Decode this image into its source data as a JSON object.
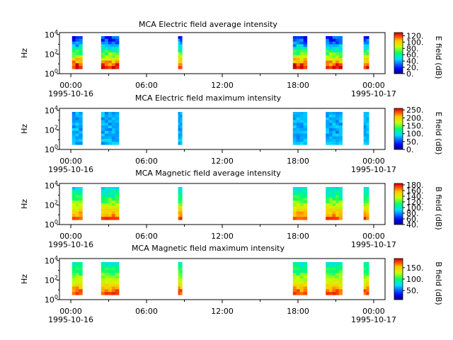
{
  "chart_data": [
    {
      "type": "heatmap",
      "title": "MCA  Electric field average intensity",
      "ylabel": "Hz",
      "y_ticks": [
        {
          "base": "10",
          "exp": "0"
        },
        {
          "base": "10",
          "exp": "2"
        },
        {
          "base": "10",
          "exp": "4"
        }
      ],
      "colorbar_label": "E field (dB)",
      "colorbar_ticks": [
        "0.",
        "20.",
        "40.",
        "60.",
        "80.",
        "100.",
        "120."
      ],
      "colorbar_range": [
        0,
        130
      ],
      "value_range": [
        20,
        130
      ],
      "intervals_hours": [
        [
          0.1,
          0.9
        ],
        [
          2.4,
          3.8
        ],
        [
          8.5,
          8.8
        ],
        [
          17.6,
          18.7
        ],
        [
          20.2,
          21.5
        ],
        [
          23.2,
          23.6
        ]
      ],
      "x_ticks": [
        {
          "label": "00:00",
          "date": "1995-10-16"
        },
        {
          "label": "06:00",
          "date": ""
        },
        {
          "label": "12:00",
          "date": ""
        },
        {
          "label": "18:00",
          "date": ""
        },
        {
          "label": "00:00",
          "date": "1995-10-17"
        }
      ]
    },
    {
      "type": "heatmap",
      "title": "MCA  Electric field maximum intensity",
      "ylabel": "Hz",
      "y_ticks": [
        {
          "base": "10",
          "exp": "0"
        },
        {
          "base": "10",
          "exp": "2"
        },
        {
          "base": "10",
          "exp": "4"
        }
      ],
      "colorbar_label": "E field (dB)",
      "colorbar_ticks": [
        "0.",
        "50.",
        "100.",
        "150.",
        "200.",
        "250."
      ],
      "colorbar_range": [
        0,
        260
      ],
      "value_range": [
        50,
        110
      ],
      "intervals_hours": [
        [
          0.1,
          0.9
        ],
        [
          2.4,
          3.8
        ],
        [
          8.5,
          8.8
        ],
        [
          17.6,
          18.7
        ],
        [
          20.2,
          21.5
        ],
        [
          23.2,
          23.6
        ]
      ],
      "x_ticks": [
        {
          "label": "00:00",
          "date": "1995-10-16"
        },
        {
          "label": "06:00",
          "date": ""
        },
        {
          "label": "12:00",
          "date": ""
        },
        {
          "label": "18:00",
          "date": ""
        },
        {
          "label": "00:00",
          "date": "1995-10-17"
        }
      ]
    },
    {
      "type": "heatmap",
      "title": "MCA  Magnetic field average intensity",
      "ylabel": "Hz",
      "y_ticks": [
        {
          "base": "10",
          "exp": "0"
        },
        {
          "base": "10",
          "exp": "2"
        },
        {
          "base": "10",
          "exp": "4"
        }
      ],
      "colorbar_label": "B field (dB)",
      "colorbar_ticks": [
        "40.",
        "60.",
        "80.",
        "100.",
        "120.",
        "140.",
        "160.",
        "180."
      ],
      "colorbar_range": [
        40,
        185
      ],
      "value_range": [
        95,
        170
      ],
      "intervals_hours": [
        [
          0.1,
          0.9
        ],
        [
          2.4,
          3.8
        ],
        [
          8.5,
          8.8
        ],
        [
          17.6,
          18.7
        ],
        [
          20.2,
          21.5
        ],
        [
          23.2,
          23.6
        ]
      ],
      "x_ticks": [
        {
          "label": "00:00",
          "date": "1995-10-16"
        },
        {
          "label": "06:00",
          "date": ""
        },
        {
          "label": "12:00",
          "date": ""
        },
        {
          "label": "18:00",
          "date": ""
        },
        {
          "label": "00:00",
          "date": "1995-10-17"
        }
      ]
    },
    {
      "type": "heatmap",
      "title": "MCA  Magnetic field maximum intensity",
      "ylabel": "Hz",
      "y_ticks": [
        {
          "base": "10",
          "exp": "0"
        },
        {
          "base": "10",
          "exp": "2"
        },
        {
          "base": "10",
          "exp": "4"
        }
      ],
      "colorbar_label": "B field (dB)",
      "colorbar_ticks": [
        "50.",
        "100.",
        "150."
      ],
      "colorbar_range": [
        10,
        190
      ],
      "value_range": [
        85,
        175
      ],
      "intervals_hours": [
        [
          0.1,
          0.9
        ],
        [
          2.4,
          3.8
        ],
        [
          8.5,
          8.8
        ],
        [
          17.6,
          18.7
        ],
        [
          20.2,
          21.5
        ],
        [
          23.2,
          23.6
        ]
      ],
      "x_ticks": [
        {
          "label": "00:00",
          "date": "1995-10-16"
        },
        {
          "label": "06:00",
          "date": ""
        },
        {
          "label": "12:00",
          "date": ""
        },
        {
          "label": "18:00",
          "date": ""
        },
        {
          "label": "00:00",
          "date": "1995-10-17"
        }
      ]
    }
  ]
}
